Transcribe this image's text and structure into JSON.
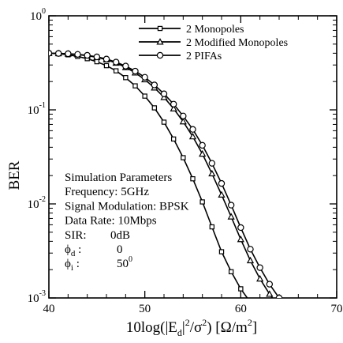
{
  "chart_data": {
    "type": "line",
    "title": "",
    "xlabel": "10log(|E_d|^2/σ^2) [Ω/m^2]",
    "ylabel": "BER",
    "xlim": [
      40,
      70
    ],
    "ylim": [
      0.001,
      1
    ],
    "yscale": "log",
    "x_ticks": [
      "40",
      "50",
      "60",
      "70"
    ],
    "y_ticks": [
      {
        "base": "10",
        "exp": "0"
      },
      {
        "base": "10",
        "exp": "-1"
      },
      {
        "base": "10",
        "exp": "-2"
      },
      {
        "base": "10",
        "exp": "-3"
      }
    ],
    "grid": false,
    "legend": "top-right",
    "series": [
      {
        "name": "2 Monopoles",
        "marker": "square",
        "x": [
          40,
          41,
          42,
          43,
          44,
          45,
          46,
          47,
          48,
          49,
          50,
          51,
          52,
          53,
          54,
          55,
          56,
          57,
          58,
          59,
          60,
          61,
          62
        ],
        "y": [
          0.4,
          0.395,
          0.385,
          0.37,
          0.35,
          0.325,
          0.295,
          0.26,
          0.22,
          0.18,
          0.14,
          0.105,
          0.074,
          0.049,
          0.031,
          0.0185,
          0.0105,
          0.0057,
          0.0031,
          0.0019,
          0.00125,
          0.0009,
          0.0007
        ]
      },
      {
        "name": "2 Modified Monopoles",
        "marker": "triangle",
        "x": [
          40,
          41,
          42,
          43,
          44,
          45,
          46,
          47,
          48,
          49,
          50,
          51,
          52,
          53,
          54,
          55,
          56,
          57,
          58,
          59,
          60,
          61,
          62,
          63,
          64
        ],
        "y": [
          0.4,
          0.398,
          0.394,
          0.387,
          0.377,
          0.362,
          0.342,
          0.315,
          0.283,
          0.248,
          0.21,
          0.172,
          0.136,
          0.103,
          0.075,
          0.052,
          0.034,
          0.021,
          0.0125,
          0.0073,
          0.0042,
          0.0025,
          0.0016,
          0.0011,
          0.0008
        ]
      },
      {
        "name": "2 PIFAs",
        "marker": "circle",
        "x": [
          40,
          41,
          42,
          43,
          44,
          45,
          46,
          47,
          48,
          49,
          50,
          51,
          52,
          53,
          54,
          55,
          56,
          57,
          58,
          59,
          60,
          61,
          62,
          63,
          64
        ],
        "y": [
          0.4,
          0.398,
          0.395,
          0.389,
          0.38,
          0.366,
          0.347,
          0.322,
          0.292,
          0.258,
          0.222,
          0.184,
          0.148,
          0.115,
          0.086,
          0.062,
          0.042,
          0.027,
          0.0165,
          0.0097,
          0.0056,
          0.0033,
          0.0021,
          0.0014,
          0.001
        ]
      }
    ],
    "annotations": [
      {
        "key": "title",
        "label": "Simulation Parameters",
        "value": ""
      },
      {
        "key": "frequency",
        "label": "Frequency: 5GHz",
        "value": ""
      },
      {
        "key": "modulation",
        "label": "Signal Modulation: BPSK",
        "value": ""
      },
      {
        "key": "datarate",
        "label": "Data Rate: 10Mbps",
        "value": ""
      },
      {
        "key": "sir",
        "label": "SIR:",
        "value": "0dB"
      },
      {
        "key": "phid",
        "label": "ϕd :",
        "value": "0"
      },
      {
        "key": "phii",
        "label": "ϕi :",
        "value": "50°"
      }
    ]
  }
}
